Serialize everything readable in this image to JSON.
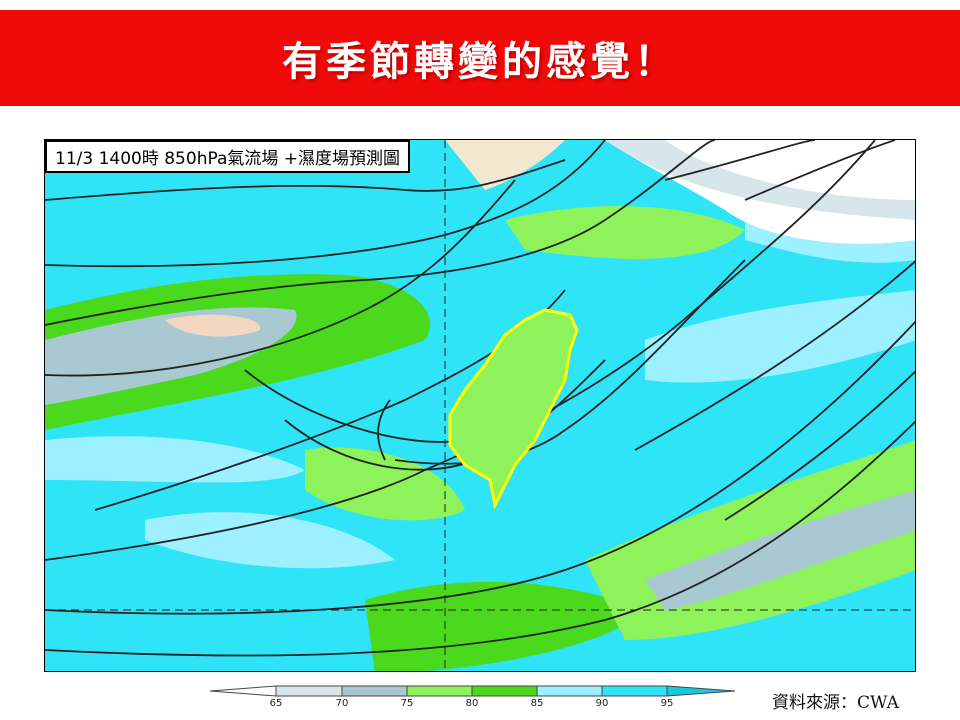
{
  "banner": {
    "title": "有季節轉變的感覺！",
    "color": "#f00a0a"
  },
  "map": {
    "label": "11/3 1400時  850hPa氣流場 +濕度場預測圖",
    "highlight_region": "Taiwan",
    "highlight_color": "#ffff00"
  },
  "colorbar": {
    "ticks": [
      "65",
      "70",
      "75",
      "80",
      "85",
      "90",
      "95"
    ],
    "colors": [
      "#ffffff",
      "#d6e6ea",
      "#a9c9d2",
      "#8ef25a",
      "#4ad91c",
      "#9cf0ff",
      "#2ee4f6",
      "#18c8dc"
    ]
  },
  "source": "資料來源：CWA"
}
